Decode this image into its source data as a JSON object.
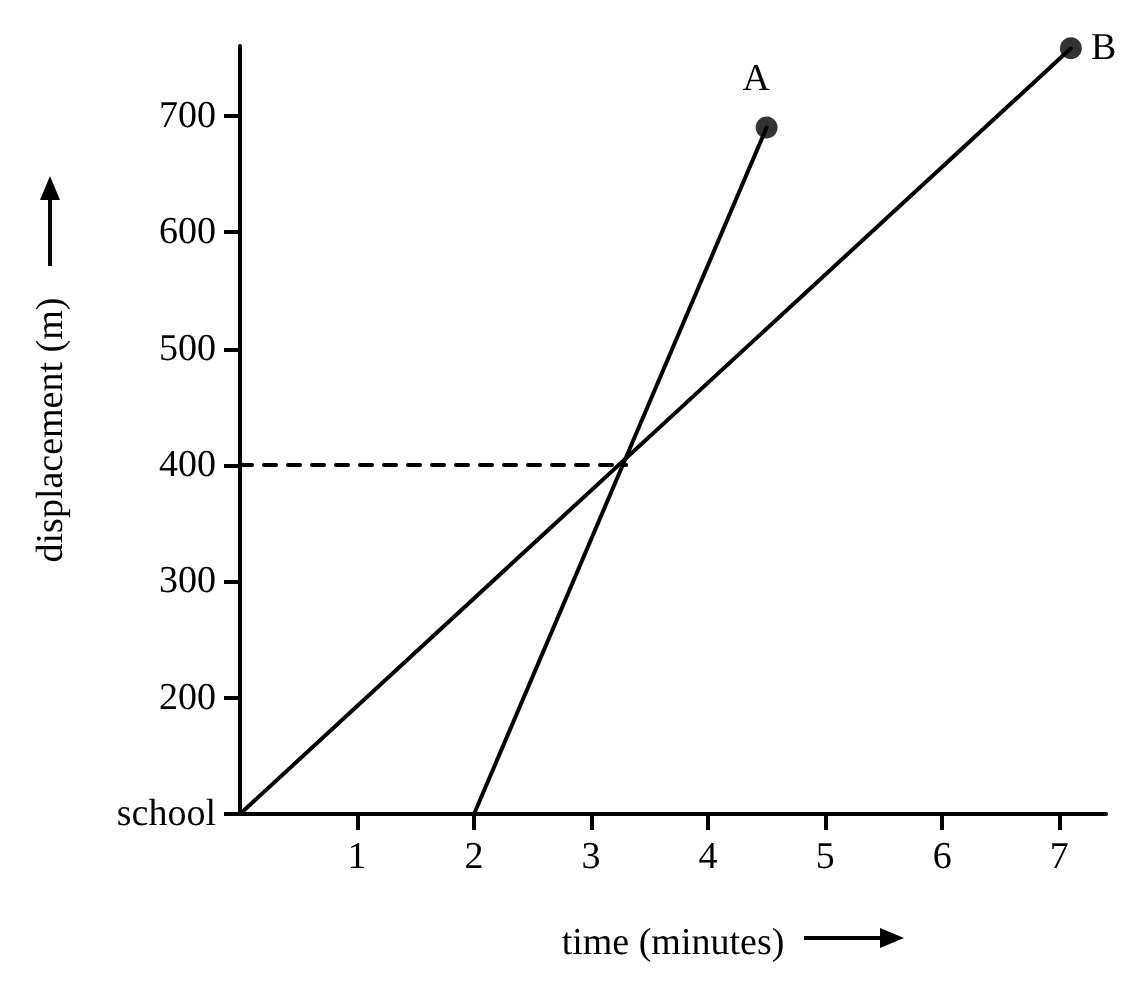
{
  "chart_data": {
    "type": "line",
    "xlabel": "time (minutes)",
    "ylabel": "displacement (m)",
    "xlim": [
      0,
      7.4
    ],
    "xticks": [
      1,
      2,
      3,
      4,
      5,
      6,
      7
    ],
    "ylim": [
      100,
      760
    ],
    "yticks": [
      {
        "value": 100,
        "label": "school"
      },
      200,
      300,
      400,
      500,
      600,
      700
    ],
    "grid": false,
    "legend": false,
    "line_style": "solid",
    "series": [
      {
        "name": "A",
        "color": "#000000",
        "x": [
          2,
          4.5
        ],
        "values": [
          100,
          690
        ],
        "marker": "none"
      },
      {
        "name": "B",
        "color": "#000000",
        "x": [
          0,
          7.1
        ],
        "values": [
          100,
          758
        ],
        "marker": "none"
      },
      {
        "type": "scatter",
        "color": "#000000",
        "x": [
          4.5,
          7.1
        ],
        "values": [
          690,
          758
        ],
        "marker": "circle"
      },
      {
        "color": "#000000",
        "x": [
          0,
          3.3
        ],
        "values": [
          400,
          400
        ],
        "line_style": "dashed",
        "marker": "none"
      }
    ]
  }
}
